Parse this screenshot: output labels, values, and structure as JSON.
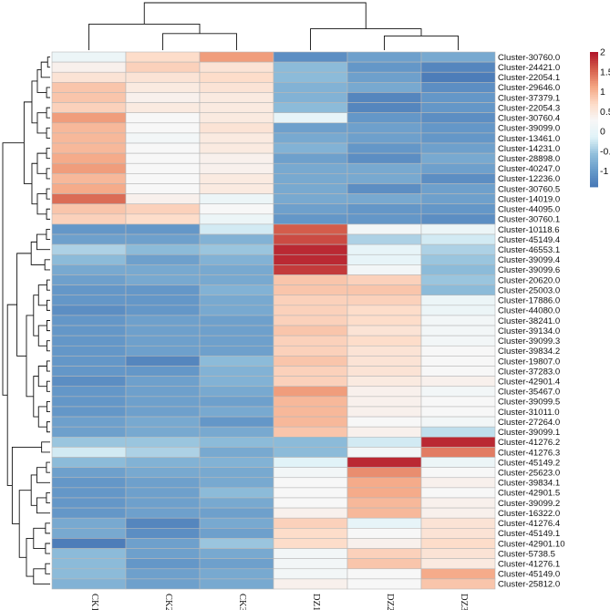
{
  "chart_data": {
    "type": "heatmap",
    "title": "",
    "columns": [
      "CK1",
      "CK2",
      "CK3",
      "DZ1",
      "DZ2",
      "DZ3"
    ],
    "rows": [
      "Cluster-30760.0",
      "Cluster-24421.0",
      "Cluster-22054.1",
      "Cluster-29646.0",
      "Cluster-37379.1",
      "Cluster-22054.3",
      "Cluster-30760.4",
      "Cluster-39099.0",
      "Cluster-13461.0",
      "Cluster-14231.0",
      "Cluster-28898.0",
      "Cluster-40247.0",
      "Cluster-12236.0",
      "Cluster-30760.5",
      "Cluster-14019.0",
      "Cluster-44095.0",
      "Cluster-30760.1",
      "Cluster-10118.6",
      "Cluster-45149.4",
      "Cluster-46553.1",
      "Cluster-39099.4",
      "Cluster-39099.6",
      "Cluster-20620.0",
      "Cluster-25003.0",
      "Cluster-17886.0",
      "Cluster-44080.0",
      "Cluster-38241.0",
      "Cluster-39134.0",
      "Cluster-39099.3",
      "Cluster-39834.2",
      "Cluster-19807.0",
      "Cluster-37283.0",
      "Cluster-42901.4",
      "Cluster-35467.0",
      "Cluster-39099.5",
      "Cluster-31011.0",
      "Cluster-27264.0",
      "Cluster-39099.1",
      "Cluster-41276.2",
      "Cluster-41276.3",
      "Cluster-45149.2",
      "Cluster-25623.0",
      "Cluster-39834.1",
      "Cluster-42901.5",
      "Cluster-39099.2",
      "Cluster-16322.0",
      "Cluster-41276.4",
      "Cluster-45149.1",
      "Cluster-42901.10",
      "Cluster-5738.5",
      "Cluster-41276.1",
      "Cluster-45149.0",
      "Cluster-25812.0"
    ],
    "values": [
      [
        0.1,
        0.7,
        1.2,
        -1.1,
        -0.9,
        -0.8
      ],
      [
        0.4,
        0.8,
        0.6,
        -0.6,
        -1.0,
        -1.2
      ],
      [
        0.6,
        0.6,
        0.7,
        -0.6,
        -0.9,
        -1.3
      ],
      [
        0.9,
        0.5,
        0.6,
        -0.7,
        -0.8,
        -1.1
      ],
      [
        0.9,
        0.4,
        0.5,
        -0.7,
        -1.2,
        -1.0
      ],
      [
        0.8,
        0.5,
        0.5,
        -0.6,
        -1.2,
        -1.0
      ],
      [
        1.2,
        0.3,
        0.5,
        0.0,
        -1.0,
        -1.1
      ],
      [
        1.0,
        0.3,
        0.6,
        -0.9,
        -0.9,
        -1.0
      ],
      [
        1.0,
        0.2,
        0.5,
        -0.8,
        -0.9,
        -1.0
      ],
      [
        1.0,
        0.3,
        0.5,
        -0.7,
        -1.0,
        -0.9
      ],
      [
        1.1,
        0.3,
        0.4,
        -0.9,
        -1.1,
        -0.8
      ],
      [
        1.2,
        0.3,
        0.4,
        -0.8,
        -0.8,
        -0.9
      ],
      [
        1.0,
        0.3,
        0.5,
        -0.8,
        -0.8,
        -1.1
      ],
      [
        1.1,
        0.3,
        0.5,
        -0.8,
        -1.1,
        -0.9
      ],
      [
        1.5,
        0.4,
        0.1,
        -0.8,
        -0.8,
        -0.9
      ],
      [
        0.9,
        0.8,
        0.3,
        -0.9,
        -1.0,
        -1.0
      ],
      [
        0.8,
        0.7,
        0.1,
        -1.0,
        -1.0,
        -1.1
      ],
      [
        -1.0,
        -1.0,
        -0.2,
        1.6,
        0.2,
        0.1
      ],
      [
        -0.9,
        -0.9,
        -0.7,
        1.7,
        -0.4,
        -0.2
      ],
      [
        -0.4,
        -0.6,
        -0.5,
        1.9,
        0.0,
        -0.4
      ],
      [
        -0.6,
        -0.9,
        -0.7,
        1.9,
        0.0,
        -0.5
      ],
      [
        -0.8,
        -0.8,
        -0.8,
        1.8,
        0.2,
        -0.6
      ],
      [
        -0.9,
        -0.8,
        -0.8,
        0.9,
        0.8,
        -0.5
      ],
      [
        -1.0,
        -1.0,
        -0.7,
        0.9,
        0.9,
        -0.6
      ],
      [
        -1.0,
        -1.0,
        -0.8,
        0.8,
        0.8,
        0.1
      ],
      [
        -1.1,
        -1.0,
        -0.8,
        0.8,
        0.7,
        0.1
      ],
      [
        -1.0,
        -0.9,
        -0.9,
        0.8,
        0.7,
        0.2
      ],
      [
        -1.0,
        -0.9,
        -0.9,
        0.9,
        0.6,
        0.2
      ],
      [
        -1.0,
        -0.9,
        -0.9,
        0.8,
        0.7,
        0.2
      ],
      [
        -1.0,
        -0.9,
        -0.9,
        0.8,
        0.6,
        0.3
      ],
      [
        -1.0,
        -1.2,
        -0.6,
        0.9,
        0.6,
        0.3
      ],
      [
        -1.0,
        -1.0,
        -0.7,
        0.8,
        0.6,
        0.3
      ],
      [
        -1.1,
        -0.9,
        -0.7,
        0.8,
        0.5,
        0.4
      ],
      [
        -1.0,
        -0.9,
        -0.8,
        1.2,
        0.4,
        0.2
      ],
      [
        -1.0,
        -0.9,
        -0.9,
        1.0,
        0.4,
        0.3
      ],
      [
        -1.0,
        -0.9,
        -0.8,
        1.0,
        0.4,
        0.3
      ],
      [
        -0.9,
        -0.8,
        -1.0,
        1.0,
        0.3,
        0.2
      ],
      [
        -0.9,
        -0.8,
        -0.8,
        0.9,
        0.4,
        -0.3
      ],
      [
        -0.5,
        -0.5,
        -0.6,
        -0.6,
        -0.2,
        1.9
      ],
      [
        -0.2,
        -0.4,
        -0.8,
        -0.6,
        0.2,
        1.4
      ],
      [
        -0.6,
        -0.7,
        -0.7,
        -0.1,
        1.9,
        0.1
      ],
      [
        -0.9,
        -0.8,
        -0.8,
        0.2,
        1.3,
        0.3
      ],
      [
        -1.0,
        -0.9,
        -0.8,
        0.3,
        1.1,
        0.4
      ],
      [
        -1.0,
        -0.9,
        -0.6,
        0.3,
        1.1,
        0.3
      ],
      [
        -1.0,
        -0.9,
        -0.8,
        0.3,
        1.0,
        0.4
      ],
      [
        -1.0,
        -0.9,
        -0.9,
        0.4,
        1.0,
        0.4
      ],
      [
        -0.8,
        -1.2,
        -0.8,
        0.8,
        0.0,
        0.6
      ],
      [
        -0.8,
        -1.1,
        -0.9,
        0.7,
        0.3,
        0.6
      ],
      [
        -1.3,
        -0.9,
        -0.5,
        0.7,
        0.4,
        0.7
      ],
      [
        -0.6,
        -0.9,
        -0.8,
        0.2,
        0.8,
        0.6
      ],
      [
        -0.6,
        -1.0,
        -0.9,
        0.2,
        0.9,
        0.5
      ],
      [
        -0.6,
        -0.9,
        -0.8,
        0.2,
        0.3,
        1.1
      ],
      [
        -0.7,
        -0.9,
        -0.8,
        0.4,
        0.3,
        0.9
      ]
    ],
    "colorbar": {
      "ticks": [
        2,
        1.5,
        1,
        0.5,
        0,
        -0.5,
        -1
      ],
      "range": [
        -1.4,
        2.0
      ],
      "colors": [
        "#4575b4",
        "#6699c9",
        "#91bfdb",
        "#e0f3f8",
        "#f7f7f7",
        "#fddbc7",
        "#f4a582",
        "#d6604d",
        "#b2182b"
      ]
    },
    "grid_color": "#b8b8b8",
    "dendrogram_color": "#111111"
  }
}
